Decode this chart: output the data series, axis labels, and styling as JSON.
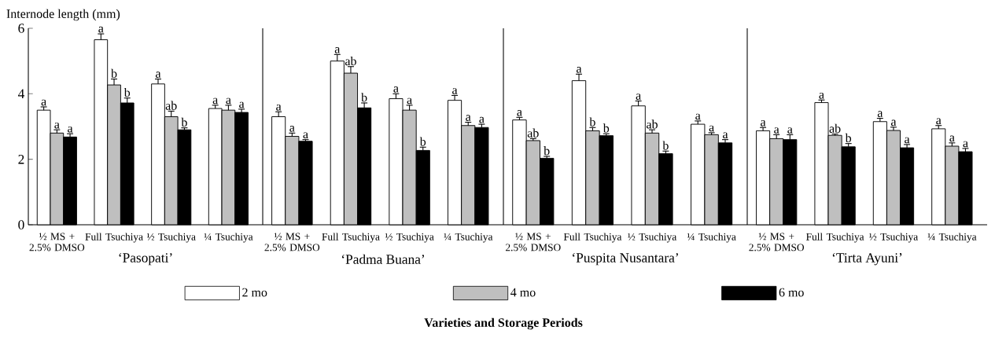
{
  "chart_data": [
    {
      "type": "bar",
      "ylabel": "Internode length (mm)",
      "xlabel": "‘Pasopati’",
      "categories": [
        "½ MS + 2.5% DMSO",
        "Full Tsuchiya",
        "½ Tsuchiya",
        "¼ Tsuchiya"
      ],
      "ylim": [
        0,
        6
      ],
      "yticks": [
        0,
        2,
        4,
        6
      ],
      "legend": "bottom",
      "annotations": [
        "Varieties and Storage Periods"
      ],
      "series": [
        {
          "name": "2 mo",
          "color": "#ffffff",
          "values": [
            3.5,
            5.65,
            4.3,
            3.55
          ],
          "errors": [
            0.1,
            0.18,
            0.15,
            0.1
          ],
          "value_labels": [
            "a",
            "a",
            "a",
            "a"
          ]
        },
        {
          "name": "4 mo",
          "color": "#bfbfbf",
          "values": [
            2.8,
            4.27,
            3.3,
            3.5
          ],
          "errors": [
            0.1,
            0.18,
            0.17,
            0.15
          ],
          "value_labels": [
            "a",
            "b",
            "ab",
            "a"
          ]
        },
        {
          "name": "6 mo",
          "color": "#000000",
          "values": [
            2.68,
            3.72,
            2.9,
            3.43
          ],
          "errors": [
            0.1,
            0.15,
            0.06,
            0.1
          ],
          "value_labels": [
            "a",
            "b",
            "b",
            "a"
          ]
        }
      ]
    },
    {
      "type": "bar",
      "xlabel": "‘Padma Buana’",
      "categories": [
        "½ MS + 2.5% DMSO",
        "Full Tsuchiya",
        "½ Tsuchiya",
        "¼ Tsuchiya"
      ],
      "ylim": [
        0,
        6
      ],
      "tick_labels": "x",
      "series": [
        {
          "color": "#ffffff",
          "values": [
            3.3,
            5.0,
            3.85,
            3.8
          ],
          "errors": [
            0.15,
            0.2,
            0.15,
            0.15
          ],
          "value_labels": [
            "a",
            "a",
            "a",
            "a"
          ]
        },
        {
          "color": "#bfbfbf",
          "values": [
            2.7,
            4.63,
            3.5,
            3.03
          ],
          "errors": [
            0.1,
            0.2,
            0.15,
            0.1
          ],
          "value_labels": [
            "a",
            "ab",
            "a",
            "a"
          ]
        },
        {
          "color": "#000000",
          "values": [
            2.55,
            3.57,
            2.27,
            2.97
          ],
          "errors": [
            0.05,
            0.15,
            0.1,
            0.1
          ],
          "value_labels": [
            "a",
            "b",
            "b",
            "a"
          ]
        }
      ]
    },
    {
      "type": "bar",
      "xlabel": "‘Puspita Nusantara’",
      "categories": [
        "½ MS + 2.5% DMSO",
        "Full Tsuchiya",
        "½ Tsuchiya",
        "¼ Tsuchiya"
      ],
      "ylim": [
        0,
        6
      ],
      "tick_labels": "x",
      "series": [
        {
          "color": "#ffffff",
          "values": [
            3.2,
            4.4,
            3.63,
            3.07
          ],
          "errors": [
            0.08,
            0.2,
            0.15,
            0.1
          ],
          "value_labels": [
            "a",
            "a",
            "a",
            "a"
          ]
        },
        {
          "color": "#bfbfbf",
          "values": [
            2.57,
            2.87,
            2.8,
            2.75
          ],
          "errors": [
            0.06,
            0.1,
            0.1,
            0.06
          ],
          "value_labels": [
            "ab",
            "b",
            "ab",
            "a"
          ]
        },
        {
          "color": "#000000",
          "values": [
            2.03,
            2.72,
            2.17,
            2.5
          ],
          "errors": [
            0.06,
            0.06,
            0.08,
            0.1
          ],
          "value_labels": [
            "b",
            "b",
            "b",
            "a"
          ]
        }
      ]
    },
    {
      "type": "bar",
      "xlabel": "‘Tirta Ayuni’",
      "categories": [
        "½ MS + 2.5% DMSO",
        "Full Tsuchiya",
        "½ Tsuchiya",
        "¼ Tsuchiya"
      ],
      "ylim": [
        0,
        6
      ],
      "tick_labels": "x",
      "series": [
        {
          "color": "#ffffff",
          "values": [
            2.87,
            3.73,
            3.15,
            2.93
          ],
          "errors": [
            0.1,
            0.08,
            0.1,
            0.1
          ],
          "value_labels": [
            "a",
            "a",
            "a",
            "a"
          ]
        },
        {
          "color": "#bfbfbf",
          "values": [
            2.63,
            2.73,
            2.88,
            2.4
          ],
          "errors": [
            0.12,
            0.04,
            0.1,
            0.1
          ],
          "value_labels": [
            "a",
            "ab",
            "a",
            "a"
          ]
        },
        {
          "color": "#000000",
          "values": [
            2.6,
            2.38,
            2.35,
            2.23
          ],
          "errors": [
            0.15,
            0.1,
            0.1,
            0.1
          ],
          "value_labels": [
            "a",
            "b",
            "a",
            "a"
          ]
        }
      ]
    }
  ]
}
